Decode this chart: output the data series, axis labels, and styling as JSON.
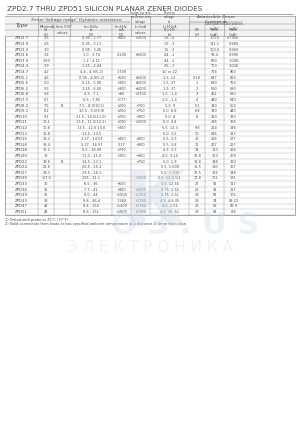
{
  "title": "ZPD2.7 THRU ZPD51 SILICON PLANAR ZENER DIODES",
  "rows": [
    [
      "ZPD2.7",
      "2.5",
      "",
      "0.95 - 2.77",
      "+800",
      "+1000",
      "15  -4",
      "",
      "100.0",
      "0.7000"
    ],
    [
      "ZPD3.0",
      "2.8",
      "",
      "0.95 - 3.11",
      "",
      "",
      "15  -3",
      "",
      "111.1",
      "0.960"
    ],
    [
      "ZPD3.3",
      "3.0",
      "",
      "0.95 - 3.45",
      "",
      "",
      "15  -3",
      "",
      "100.0",
      "0.960"
    ],
    [
      "ZPD3.6",
      "3.4",
      "",
      "1.0 - 3.74",
      "2.200",
      "+6000",
      "44  -1",
      "",
      "93.4",
      "0.990"
    ],
    [
      "ZPD3.9",
      "3.60",
      "",
      "1.2 - 4.11",
      "",
      "",
      "44  -1",
      "",
      "860",
      "1.040"
    ],
    [
      "ZPD4.3",
      "3.9",
      "",
      "1.25 - 4.44",
      "",
      "",
      "45  -1",
      "",
      "700",
      "1.040"
    ],
    [
      "ZPD4.7",
      "4.2",
      "",
      "4.4 - 4.9(5.2)",
      "1.700",
      "",
      "10 or 22",
      "",
      "734",
      "960"
    ],
    [
      "ZPD5.1",
      "4.6",
      "",
      "0.95 - 4.9(5.2)",
      "+500",
      "+6000",
      "1.5  12",
      "0.18",
      "647",
      "860"
    ],
    [
      "ZPD5.6",
      "5.0",
      "",
      "0.15 - 5.90",
      "+350",
      "+6000",
      "1.5  37",
      "1",
      "590",
      "760"
    ],
    [
      "ZPD6.2",
      "5.5",
      "",
      "3.25 - 6.50",
      "+300",
      "+6000",
      "1.5  37",
      "2",
      "530",
      "680"
    ],
    [
      "ZPD6.8",
      "5.8",
      "",
      "4.3 - 7.1",
      "+60",
      "+3700",
      "1.5  -1.4",
      "3",
      "461",
      "590"
    ],
    [
      "ZPD7.5",
      "6.7",
      "",
      "6.5 - 7.85",
      "+177",
      "",
      "1.5  -1.4",
      "4",
      "440",
      "540"
    ],
    [
      "ZPD8.2",
      "7.5",
      "B",
      "7.5 - 8.9(10.1)",
      "+200",
      "+700",
      "5.0  9",
      "5.1",
      "390",
      "500"
    ],
    [
      "ZPD9.1",
      "8.2",
      "",
      "10.5 - 9.5(9.9)",
      "+250",
      "+750",
      "5.0  8.8",
      "6.8",
      "340",
      "440"
    ],
    [
      "ZPD10",
      "9.1",
      "",
      "11.5 - 10.5(11.0)",
      "+250",
      "+900",
      "5.0  4",
      "8",
      "310",
      "390"
    ],
    [
      "ZPD11",
      "10.1",
      "",
      "13.5 - 11.5(12.2)",
      "+290",
      "+1000",
      "5.0  4.4",
      "",
      "286",
      "366"
    ],
    [
      "ZPD12",
      "10.8",
      "",
      "13.5 - 12.0 13.0",
      "+300",
      "",
      "5.5  12.3",
      "9.8",
      "264",
      "346"
    ],
    [
      "ZPD13",
      "11.8",
      "",
      "13.5 - 13.5",
      "",
      "",
      "5.0  3.5",
      "10",
      "246",
      "317"
    ],
    [
      "ZPD15",
      "13.2",
      "",
      "3.27 - 14.57",
      "+450",
      "+800",
      "5.5  3.3",
      "11",
      "216",
      "277"
    ],
    [
      "ZPD16",
      "14.4",
      "",
      "5.27 - 16.57",
      "3.27",
      "+900",
      "5.5  3.8",
      "12",
      "207",
      "267"
    ],
    [
      "ZPD18",
      "16.2",
      "",
      "6.5 - 18.99",
      "+700",
      "",
      "4.5  3.3",
      "14",
      "183",
      "234"
    ],
    [
      "ZPD20",
      "18",
      "",
      "11.0 - 21.0",
      "+350",
      "+960",
      "4.5  3.14",
      "11.8",
      "163",
      "209"
    ],
    [
      "ZPD22",
      "19.8",
      "B",
      "14.5 - 23.1",
      "",
      "+750",
      "5.0  1.9",
      "13.8",
      "148",
      "190"
    ],
    [
      "ZPD24",
      "21.6",
      "",
      "20.5 - 25.1",
      "",
      "",
      "5.5  1.600",
      "15.5",
      "130",
      "167"
    ],
    [
      "ZPD27",
      "24.3",
      "",
      "29.5 - 28.1",
      "",
      "",
      "5.5  1.705",
      "17.5",
      "116",
      "148"
    ],
    [
      "ZPD30",
      "~27.0",
      "",
      "295 - 31.1",
      "",
      "+1000",
      "5.5  12.9 1/2",
      "17.8",
      "101",
      "131"
    ],
    [
      "ZPD33",
      "30",
      "",
      "6.5 - 36",
      "+600",
      "",
      "5.5  12.55",
      "27",
      "91",
      "117"
    ],
    [
      "ZPD36",
      "32",
      "",
      "7.7 - 41",
      "+900",
      "+3200",
      "0.75  2.55",
      "28",
      "91",
      "117"
    ],
    [
      "ZPD39",
      "35",
      "",
      "8.0 - 44",
      "+1500",
      "+1760",
      "0.75  2.51",
      "28",
      "82",
      "105"
    ],
    [
      "ZPD43",
      "38",
      "",
      "8.8 - 46.4",
      "1.960",
      "+1780",
      "4.5  4.6 35",
      "28",
      "74",
      "88.22"
    ],
    [
      "ZPD47",
      "42",
      "",
      "8.4 - 154",
      "+1400",
      "+1780",
      "4.5  1.51",
      "28",
      "68",
      "89.9"
    ],
    [
      "ZPD51",
      "46",
      "",
      "8.5 - 151",
      "+1800",
      "+1780",
      "4.5  16  51",
      "28",
      "64",
      "8.8"
    ]
  ],
  "footnotes": [
    "1) Tested with probe at 25°C (77°F)",
    "2) Valid connection from leads or has specified ambient temperature at a distance of 4mm from case."
  ],
  "bg_color": "#ffffff",
  "text_color": "#4a4a4a",
  "border_color": "#888888",
  "header_bg": "#eeeeee",
  "watermark_color": "#c8d8e8"
}
